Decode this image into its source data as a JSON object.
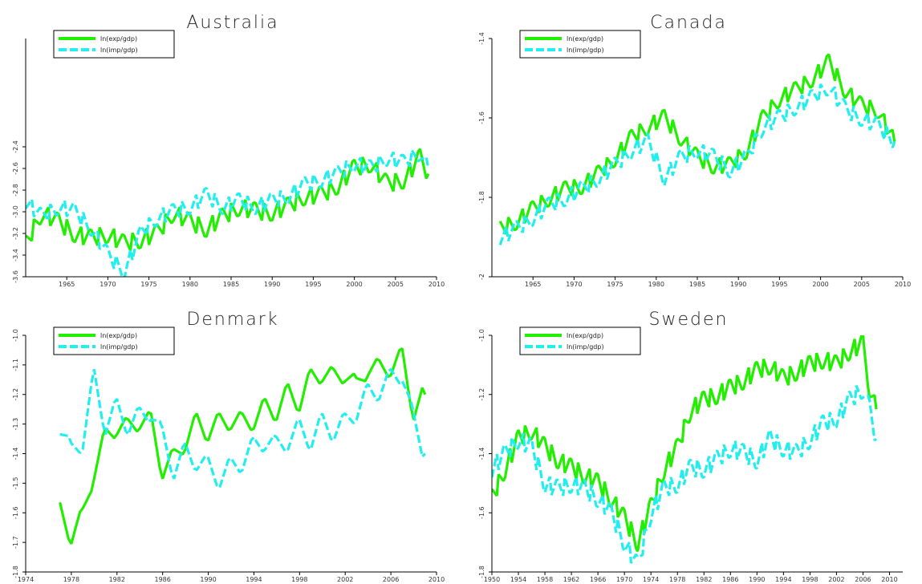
{
  "figure": {
    "background": "#ffffff"
  },
  "chart_data": [
    {
      "type": "line",
      "title": "Australia",
      "xlim": [
        1960,
        2010
      ],
      "ylim": [
        -3.6,
        -1.4
      ],
      "x_ticks": [
        1965,
        1970,
        1975,
        1980,
        1985,
        1990,
        1995,
        2000,
        2005,
        2010
      ],
      "x_tick_labels": [
        "1965",
        "1970",
        "1975",
        "1980",
        "1985",
        "1990",
        "1995",
        "2000",
        "2005",
        "2010"
      ],
      "y_ticks": [
        -3.6,
        -3.4,
        -3.2,
        -3.0,
        -2.8,
        -2.6,
        -2.4
      ],
      "y_tick_labels": [
        "-3.6",
        "-3.4",
        "-3.2",
        "-3.0",
        "-2.8",
        "-2.6",
        "-2.4"
      ],
      "legend_placement": "top-left",
      "series": [
        {
          "name": "ln(exp/gdp)",
          "color": "#22ee00",
          "dash": "solid",
          "x": [
            1960,
            1962,
            1964,
            1966,
            1968,
            1970,
            1972,
            1974,
            1976,
            1978,
            1980,
            1982,
            1984,
            1986,
            1988,
            1990,
            1992,
            1994,
            1996,
            1998,
            2000,
            2002,
            2004,
            2006,
            2008,
            2009
          ],
          "y": [
            -3.3,
            -3.0,
            -3.1,
            -3.2,
            -3.25,
            -3.2,
            -3.3,
            -3.25,
            -3.2,
            -3.0,
            -3.1,
            -3.15,
            -3.05,
            -2.95,
            -3.0,
            -3.0,
            -2.95,
            -2.85,
            -2.85,
            -2.75,
            -2.6,
            -2.55,
            -2.75,
            -2.7,
            -2.5,
            -2.65
          ],
          "amp": 0.08
        },
        {
          "name": "ln(imp/gdp)",
          "color": "#22eeee",
          "dash": "dashed",
          "x": [
            1960,
            1962,
            1964,
            1966,
            1968,
            1970,
            1972,
            1974,
            1976,
            1978,
            1980,
            1982,
            1984,
            1986,
            1988,
            1990,
            1992,
            1994,
            1996,
            1998,
            2000,
            2002,
            2004,
            2006,
            2008,
            2009
          ],
          "y": [
            -2.9,
            -3.05,
            -2.95,
            -3.0,
            -3.15,
            -3.4,
            -3.55,
            -3.2,
            -3.05,
            -3.0,
            -2.95,
            -2.85,
            -2.95,
            -2.9,
            -2.95,
            -2.9,
            -2.85,
            -2.75,
            -2.7,
            -2.65,
            -2.55,
            -2.6,
            -2.5,
            -2.55,
            -2.45,
            -2.6
          ],
          "amp": 0.07
        }
      ]
    },
    {
      "type": "line",
      "title": "Canada",
      "xlim": [
        1960,
        2010
      ],
      "ylim": [
        -2.0,
        -1.4
      ],
      "x_ticks": [
        1965,
        1970,
        1975,
        1980,
        1985,
        1990,
        1995,
        2000,
        2005,
        2010
      ],
      "x_tick_labels": [
        "1965",
        "1970",
        "1975",
        "1980",
        "1985",
        "1990",
        "1995",
        "2000",
        "2005",
        "2010"
      ],
      "y_ticks": [
        -2.0,
        -1.8,
        -1.6,
        -1.4
      ],
      "y_tick_labels": [
        "-2",
        "-1.8",
        "-1.6",
        "-1.4"
      ],
      "legend_placement": "top-left",
      "series": [
        {
          "name": "ln(exp/gdp)",
          "color": "#22ee00",
          "dash": "solid",
          "x": [
            1961,
            1963,
            1965,
            1967,
            1969,
            1971,
            1973,
            1975,
            1977,
            1979,
            1981,
            1983,
            1985,
            1987,
            1989,
            1991,
            1993,
            1995,
            1997,
            1999,
            2001,
            2003,
            2005,
            2007,
            2009
          ],
          "y": [
            -1.88,
            -1.86,
            -1.83,
            -1.8,
            -1.78,
            -1.77,
            -1.74,
            -1.7,
            -1.65,
            -1.62,
            -1.6,
            -1.65,
            -1.7,
            -1.72,
            -1.72,
            -1.68,
            -1.6,
            -1.55,
            -1.53,
            -1.5,
            -1.46,
            -1.53,
            -1.57,
            -1.58,
            -1.66
          ],
          "amp": 0.02
        },
        {
          "name": "ln(imp/gdp)",
          "color": "#22eeee",
          "dash": "dashed",
          "x": [
            1961,
            1963,
            1965,
            1967,
            1969,
            1971,
            1973,
            1975,
            1977,
            1979,
            1981,
            1983,
            1985,
            1987,
            1989,
            1991,
            1993,
            1995,
            1997,
            1999,
            2001,
            2003,
            2005,
            2007,
            2009
          ],
          "y": [
            -1.9,
            -1.88,
            -1.85,
            -1.82,
            -1.8,
            -1.78,
            -1.75,
            -1.72,
            -1.68,
            -1.66,
            -1.75,
            -1.7,
            -1.68,
            -1.7,
            -1.73,
            -1.7,
            -1.62,
            -1.6,
            -1.57,
            -1.55,
            -1.52,
            -1.58,
            -1.6,
            -1.62,
            -1.66
          ],
          "amp": 0.02
        }
      ]
    },
    {
      "type": "line",
      "title": "Denmark",
      "xlim": [
        1974,
        2010
      ],
      "ylim": [
        -1.8,
        -1.0
      ],
      "x_ticks": [
        1974,
        1978,
        1982,
        1986,
        1990,
        1994,
        1998,
        2002,
        2006,
        2010
      ],
      "x_tick_labels": [
        "1974",
        "1978",
        "1982",
        "1986",
        "1990",
        "1994",
        "1998",
        "2002",
        "2006",
        "2010"
      ],
      "y_ticks": [
        -1.8,
        -1.7,
        -1.6,
        -1.5,
        -1.4,
        -1.3,
        -1.2,
        -1.1,
        -1.0
      ],
      "y_tick_labels": [
        "-1.8",
        "-1.7",
        "-1.6",
        "-1.5",
        "-1.4",
        "-1.3",
        "-1.2",
        "-1.1",
        "-1.0"
      ],
      "legend_placement": "top-left",
      "series": [
        {
          "name": "ln(exp/gdp)",
          "color": "#22ee00",
          "dash": "solid",
          "x": [
            1977,
            1978,
            1979,
            1980,
            1981,
            1982,
            1983,
            1984,
            1985,
            1986,
            1987,
            1988,
            1989,
            1990,
            1991,
            1992,
            1993,
            1994,
            1995,
            1996,
            1997,
            1998,
            1999,
            2000,
            2001,
            2002,
            2003,
            2004,
            2005,
            2006,
            2007,
            2008,
            2009
          ],
          "y": [
            -1.6,
            -1.67,
            -1.62,
            -1.45,
            -1.35,
            -1.3,
            -1.32,
            -1.28,
            -1.3,
            -1.45,
            -1.42,
            -1.35,
            -1.3,
            -1.32,
            -1.3,
            -1.28,
            -1.3,
            -1.28,
            -1.25,
            -1.25,
            -1.2,
            -1.22,
            -1.15,
            -1.12,
            -1.15,
            -1.12,
            -1.18,
            -1.1,
            -1.12,
            -1.1,
            -1.08,
            -1.25,
            -1.2
          ],
          "amp": 0.035
        },
        {
          "name": "ln(imp/gdp)",
          "color": "#22eeee",
          "dash": "dashed",
          "x": [
            1977,
            1978,
            1979,
            1980,
            1981,
            1982,
            1983,
            1984,
            1985,
            1986,
            1987,
            1988,
            1989,
            1990,
            1991,
            1992,
            1993,
            1994,
            1995,
            1996,
            1997,
            1998,
            1999,
            2000,
            2001,
            2002,
            2003,
            2004,
            2005,
            2006,
            2007,
            2008,
            2009
          ],
          "y": [
            -1.3,
            -1.4,
            -1.35,
            -1.15,
            -1.3,
            -1.25,
            -1.3,
            -1.28,
            -1.25,
            -1.35,
            -1.45,
            -1.4,
            -1.42,
            -1.45,
            -1.48,
            -1.45,
            -1.42,
            -1.38,
            -1.35,
            -1.38,
            -1.35,
            -1.32,
            -1.35,
            -1.3,
            -1.32,
            -1.3,
            -1.25,
            -1.2,
            -1.18,
            -1.15,
            -1.12,
            -1.3,
            -1.4
          ],
          "amp": 0.035
        }
      ]
    },
    {
      "type": "line",
      "title": "Sweden",
      "xlim": [
        1950,
        2012
      ],
      "ylim": [
        -1.8,
        -1.0
      ],
      "x_ticks": [
        1950,
        1954,
        1958,
        1962,
        1966,
        1970,
        1974,
        1978,
        1982,
        1986,
        1990,
        1994,
        1998,
        2002,
        2006,
        2010
      ],
      "x_tick_labels": [
        "1950",
        "1954",
        "1958",
        "1962",
        "1966",
        "1970",
        "1974",
        "1978",
        "1982",
        "1986",
        "1990",
        "1994",
        "1998",
        "2002",
        "2006",
        "2010"
      ],
      "y_ticks": [
        -1.8,
        -1.6,
        -1.4,
        -1.2,
        -1.0
      ],
      "y_tick_labels": [
        "-1.8",
        "-1.6",
        "-1.4",
        "-1.2",
        "-1.0"
      ],
      "legend_placement": "top-left",
      "series": [
        {
          "name": "ln(exp/gdp)",
          "color": "#22ee00",
          "dash": "solid",
          "x": [
            1950,
            1952,
            1954,
            1956,
            1958,
            1960,
            1962,
            1964,
            1966,
            1968,
            1970,
            1972,
            1974,
            1976,
            1978,
            1980,
            1982,
            1984,
            1986,
            1988,
            1990,
            1992,
            1994,
            1996,
            1998,
            2000,
            2002,
            2004,
            2006,
            2007,
            2008
          ],
          "y": [
            -1.55,
            -1.45,
            -1.35,
            -1.32,
            -1.38,
            -1.42,
            -1.45,
            -1.47,
            -1.5,
            -1.55,
            -1.62,
            -1.7,
            -1.58,
            -1.45,
            -1.38,
            -1.25,
            -1.22,
            -1.2,
            -1.18,
            -1.15,
            -1.12,
            -1.1,
            -1.15,
            -1.12,
            -1.1,
            -1.08,
            -1.1,
            -1.05,
            -1.03,
            -1.18,
            -1.25
          ],
          "amp": 0.03
        },
        {
          "name": "ln(imp/gdp)",
          "color": "#22eeee",
          "dash": "dashed",
          "x": [
            1950,
            1952,
            1954,
            1956,
            1958,
            1960,
            1962,
            1964,
            1966,
            1968,
            1970,
            1972,
            1974,
            1976,
            1978,
            1980,
            1982,
            1984,
            1986,
            1988,
            1990,
            1992,
            1994,
            1996,
            1998,
            2000,
            2002,
            2004,
            2006,
            2007,
            2008
          ],
          "y": [
            -1.45,
            -1.4,
            -1.35,
            -1.38,
            -1.5,
            -1.52,
            -1.5,
            -1.52,
            -1.55,
            -1.6,
            -1.7,
            -1.78,
            -1.6,
            -1.52,
            -1.5,
            -1.45,
            -1.45,
            -1.42,
            -1.38,
            -1.4,
            -1.42,
            -1.35,
            -1.38,
            -1.4,
            -1.35,
            -1.3,
            -1.28,
            -1.22,
            -1.18,
            -1.25,
            -1.35
          ],
          "amp": 0.03
        }
      ]
    }
  ]
}
